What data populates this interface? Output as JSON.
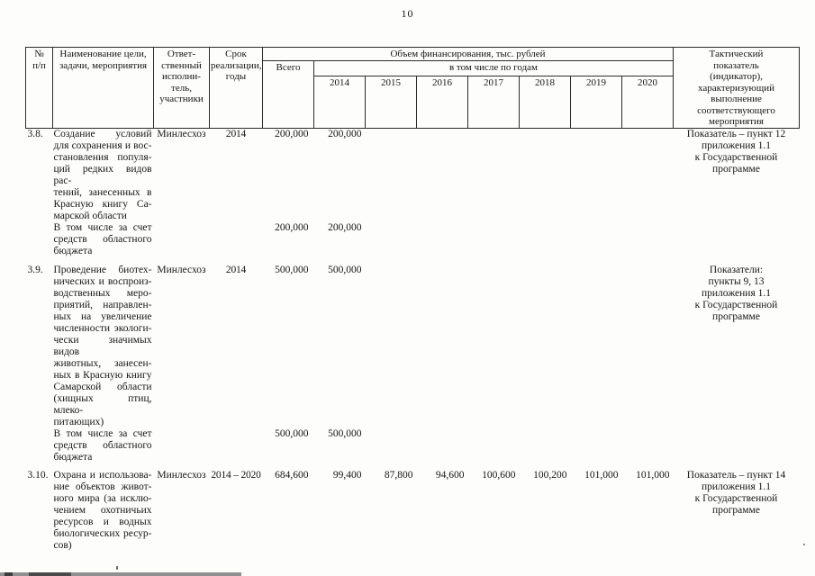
{
  "page_number": "10",
  "table": {
    "header": {
      "num": "№\nп/п",
      "name": "Наименование цели,\nзадачи, мероприятия",
      "executor": "Ответ-\nственный\nисполни-\nтель,\nучастники",
      "term": "Срок\nреализации,\nгоды",
      "financing": "Объем финансирования, тыс. рублей",
      "total": "Всего",
      "by_years": "в том числе по годам",
      "years": [
        "2014",
        "2015",
        "2016",
        "2017",
        "2018",
        "2019",
        "2020"
      ],
      "indicator": "Тактический\nпоказатель\n(индикатор),\nхарактеризующий\nвыполнение\nсоответствующего\nмероприятия"
    },
    "rows": [
      {
        "num": "3.8.",
        "name": "Создание условий\nдля сохранения и вос-\nстановления популя-\nций редких видов рас-\nтений, занесенных в\nКрасную книгу Са-\nмарской области",
        "executor": "Минлесхоз",
        "term": "2014",
        "total": "200,000",
        "years": [
          "200,000",
          "",
          "",
          "",
          "",
          "",
          ""
        ],
        "indicator": "Показатель – пункт 12\nприложения 1.1\nк Государственной\nпрограмме"
      },
      {
        "num": "",
        "name": "В том числе за счет\nсредств областного\nбюджета",
        "executor": "",
        "term": "",
        "total": "200,000",
        "years": [
          "200,000",
          "",
          "",
          "",
          "",
          "",
          ""
        ],
        "indicator": ""
      },
      {
        "num": "3.9.",
        "name": "Проведение биотех-\nнических и воспроиз-\nводственных меро-\nприятий, направлен-\nных на увеличение\nчисленности экологи-\nчески значимых видов\nживотных, занесен-\nных в Красную книгу\nСамарской области\n(хищных птиц, млеко-\nпитающих)",
        "executor": "Минлесхоз",
        "term": "2014",
        "total": "500,000",
        "years": [
          "500,000",
          "",
          "",
          "",
          "",
          "",
          ""
        ],
        "indicator": "Показатели:\nпункты 9, 13\nприложения 1.1\nк Государственной\nпрограмме"
      },
      {
        "num": "",
        "name": "В том числе за счет\nсредств областного\nбюджета",
        "executor": "",
        "term": "",
        "total": "500,000",
        "years": [
          "500,000",
          "",
          "",
          "",
          "",
          "",
          ""
        ],
        "indicator": ""
      },
      {
        "num": "3.10.",
        "name": "Охрана и использова-\nние объектов живот-\nного мира (за исклю-\nчением охотничьих\nресурсов и водных\nбиологических ресур-\nсов)",
        "executor": "Минлесхоз",
        "term": "2014 – 2020",
        "total": "684,600",
        "years": [
          "99,400",
          "87,800",
          "94,600",
          "100,600",
          "100,200",
          "101,000",
          "101,000"
        ],
        "indicator": "Показатель – пункт 14\nприложения 1.1\nк Государственной\nпрограмме"
      }
    ]
  }
}
